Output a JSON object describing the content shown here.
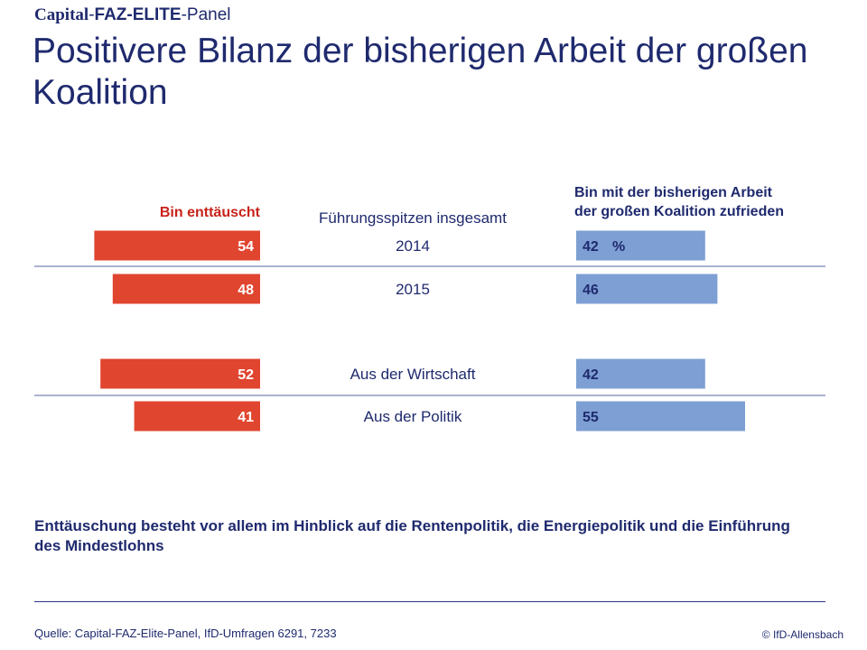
{
  "brand": {
    "part1": "Capital",
    "sep1": "-",
    "part2": "FAZ-ELITE",
    "sep2": "-",
    "part3": "Panel"
  },
  "title": "Positivere Bilanz der bisherigen Arbeit der großen Koalition",
  "chart_data": {
    "type": "bar",
    "title": "Positivere Bilanz der bisherigen Arbeit der großen Koalition",
    "group_label": "Führungsspitzen insgesamt",
    "unit": "%",
    "categories": [
      "2014",
      "2015",
      "Aus der Wirtschaft",
      "Aus der Politik"
    ],
    "series": [
      {
        "name": "Bin enttäuscht",
        "color": "#e0452f",
        "values": [
          54,
          48,
          52,
          41
        ]
      },
      {
        "name": "Bin mit der bisherigen Arbeit der großen Koalition zufrieden",
        "name_lines": [
          "Bin mit der bisherigen Arbeit",
          "der großen Koalition zufrieden"
        ],
        "color": "#7d9fd3",
        "values": [
          42,
          46,
          42,
          55
        ]
      }
    ],
    "xlabel": "",
    "ylabel": "",
    "xlim": [
      0,
      100
    ]
  },
  "footnote": "Enttäuschung besteht vor allem im Hinblick auf die Rentenpolitik, die Energiepolitik und die Einführung des Mindestlohns",
  "source": "Quelle: Capital-FAZ-Elite-Panel, IfD-Umfragen 6291, 7233",
  "copyright": "© IfD-Allensbach"
}
